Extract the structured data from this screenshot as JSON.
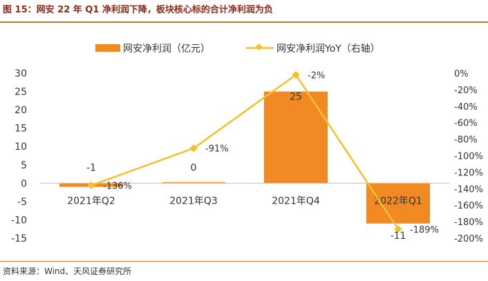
{
  "header": {
    "title": "图 15：网安 22 年 Q1 净利润下降，板块核心标的合计净利润为负"
  },
  "footer": {
    "source": "资料来源：Wind、天风证券研究所"
  },
  "colors": {
    "bar": "#f28a24",
    "line": "#f5c02c",
    "title": "#8a2a18",
    "rule": "#c8742e",
    "text": "#333333"
  },
  "chart_data": {
    "type": "bar",
    "categories": [
      "2021年Q2",
      "2021年Q3",
      "2021年Q4",
      "2022年Q1"
    ],
    "series": [
      {
        "name": "网安净利润（亿元）",
        "type": "bar",
        "axis": "left",
        "values": [
          -1,
          0,
          25,
          -11
        ],
        "value_labels": [
          "-1",
          "0",
          "25",
          "-11"
        ]
      },
      {
        "name": "网安净利润YoY（右轴）",
        "type": "line",
        "axis": "right",
        "values": [
          -136,
          -91,
          -2,
          -189
        ],
        "value_labels": [
          "-136%",
          "-91%",
          "-2%",
          "-189%"
        ]
      }
    ],
    "left_axis": {
      "ticks": [
        "30",
        "25",
        "20",
        "15",
        "10",
        "5",
        "0",
        "-5",
        "-10",
        "-15"
      ],
      "ylim": [
        -15,
        30
      ]
    },
    "right_axis": {
      "ticks": [
        "0%",
        "-20%",
        "-40%",
        "-60%",
        "-80%",
        "-100%",
        "-120%",
        "-140%",
        "-160%",
        "-180%",
        "-200%"
      ],
      "ylim": [
        -200,
        0
      ]
    },
    "legend_position": "top-center",
    "grid": false
  }
}
